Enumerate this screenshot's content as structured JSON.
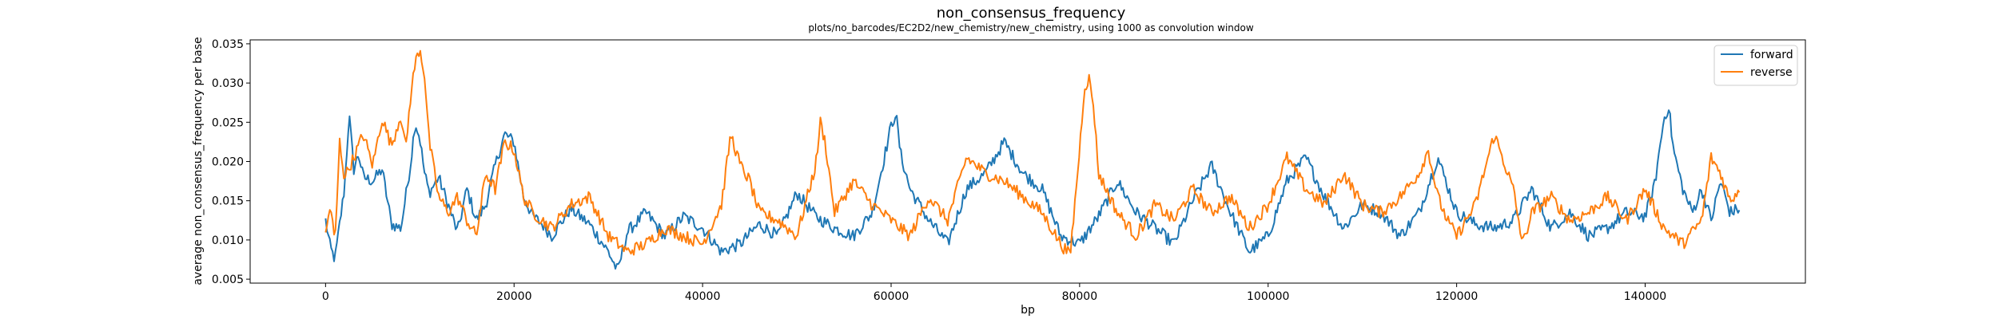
{
  "chart_data": {
    "type": "line",
    "title": "non_consensus_frequency",
    "subtitle": "plots/no_barcodes/EC2D2/new_chemistry/new_chemistry, using 1000 as convolution window",
    "xlabel": "bp",
    "ylabel": "average non_consensus_frequency per base",
    "xlim": [
      -8000,
      157000
    ],
    "ylim": [
      0.0045,
      0.0355
    ],
    "xticks": [
      0,
      20000,
      40000,
      60000,
      80000,
      100000,
      120000,
      140000
    ],
    "xtick_labels": [
      "0",
      "20000",
      "40000",
      "60000",
      "80000",
      "100000",
      "120000",
      "140000"
    ],
    "yticks": [
      0.005,
      0.01,
      0.015,
      0.02,
      0.025,
      0.03,
      0.035
    ],
    "ytick_labels": [
      "0.005",
      "0.010",
      "0.015",
      "0.020",
      "0.025",
      "0.030",
      "0.035"
    ],
    "legend_position": "top-right",
    "grid": false,
    "series": [
      {
        "name": "forward",
        "color": "#1f77b4",
        "x": [
          0,
          500,
          1000,
          1500,
          2000,
          2500,
          3000,
          3500,
          4000,
          5000,
          6000,
          7000,
          8000,
          9000,
          9500,
          10000,
          10500,
          11000,
          12000,
          13000,
          14000,
          15000,
          16000,
          17000,
          18000,
          19000,
          20000,
          21000,
          22000,
          23000,
          24000,
          26000,
          28000,
          30000,
          31000,
          32000,
          34000,
          36000,
          38000,
          40000,
          42000,
          44000,
          46000,
          48000,
          50000,
          52000,
          54000,
          56000,
          58000,
          60000,
          60500,
          61000,
          62000,
          64000,
          66000,
          68000,
          70000,
          72000,
          74000,
          76000,
          78000,
          80000,
          82000,
          84000,
          86000,
          88000,
          90000,
          92000,
          94000,
          96000,
          98000,
          100000,
          102000,
          104000,
          106000,
          108000,
          110000,
          112000,
          114000,
          116000,
          118000,
          120000,
          122000,
          124000,
          126000,
          128000,
          130000,
          132000,
          134000,
          136000,
          138000,
          140000,
          141000,
          142000,
          142500,
          143000,
          144000,
          145000,
          146000,
          147000,
          148000,
          149000,
          150000
        ],
        "y": [
          0.0125,
          0.009,
          0.0075,
          0.012,
          0.0165,
          0.026,
          0.019,
          0.021,
          0.018,
          0.0175,
          0.019,
          0.012,
          0.0115,
          0.0195,
          0.025,
          0.023,
          0.0185,
          0.016,
          0.018,
          0.0145,
          0.011,
          0.0165,
          0.0125,
          0.0145,
          0.0195,
          0.0235,
          0.0225,
          0.0155,
          0.013,
          0.012,
          0.0105,
          0.014,
          0.012,
          0.0085,
          0.006,
          0.011,
          0.0135,
          0.0105,
          0.013,
          0.0115,
          0.0085,
          0.0095,
          0.012,
          0.0105,
          0.016,
          0.013,
          0.0115,
          0.0105,
          0.0135,
          0.0245,
          0.0262,
          0.021,
          0.0165,
          0.0125,
          0.0095,
          0.0165,
          0.0185,
          0.0225,
          0.0185,
          0.0165,
          0.0105,
          0.0095,
          0.013,
          0.0175,
          0.0135,
          0.0115,
          0.0095,
          0.015,
          0.0195,
          0.0135,
          0.0085,
          0.0105,
          0.0175,
          0.0205,
          0.0155,
          0.0115,
          0.0145,
          0.0135,
          0.0105,
          0.0135,
          0.0205,
          0.0135,
          0.012,
          0.0115,
          0.0125,
          0.0165,
          0.0115,
          0.0135,
          0.0105,
          0.0115,
          0.0135,
          0.013,
          0.017,
          0.0255,
          0.027,
          0.0215,
          0.0165,
          0.0135,
          0.0165,
          0.0125,
          0.0175,
          0.0135,
          0.014
        ]
      },
      {
        "name": "reverse",
        "color": "#ff7f0e",
        "x": [
          0,
          500,
          1000,
          1500,
          2000,
          3000,
          4000,
          5000,
          6000,
          7000,
          8000,
          8500,
          9000,
          9500,
          10000,
          10500,
          11000,
          12000,
          13000,
          14000,
          15000,
          16000,
          17000,
          18000,
          19000,
          20000,
          21000,
          22000,
          24000,
          26000,
          28000,
          30000,
          32000,
          34000,
          36000,
          38000,
          40000,
          42000,
          43000,
          44000,
          45000,
          46000,
          48000,
          50000,
          52000,
          52500,
          53000,
          54000,
          56000,
          58000,
          60000,
          62000,
          64000,
          66000,
          68000,
          70000,
          72000,
          74000,
          76000,
          78000,
          79000,
          80000,
          80500,
          81000,
          81500,
          82000,
          84000,
          86000,
          88000,
          90000,
          92000,
          94000,
          96000,
          98000,
          100000,
          102000,
          104000,
          106000,
          108000,
          110000,
          112000,
          114000,
          116000,
          117000,
          118000,
          119000,
          120000,
          122000,
          124000,
          126000,
          127000,
          128000,
          130000,
          132000,
          134000,
          136000,
          138000,
          140000,
          142000,
          144000,
          146000,
          147000,
          148000,
          149000,
          150000
        ],
        "y": [
          0.0105,
          0.0145,
          0.0095,
          0.0225,
          0.018,
          0.0205,
          0.0235,
          0.0195,
          0.0255,
          0.022,
          0.026,
          0.0215,
          0.028,
          0.0325,
          0.0345,
          0.031,
          0.0225,
          0.0155,
          0.0135,
          0.0155,
          0.0125,
          0.0105,
          0.0185,
          0.0165,
          0.0225,
          0.0215,
          0.0155,
          0.0135,
          0.0115,
          0.0145,
          0.0155,
          0.0105,
          0.0085,
          0.0095,
          0.0115,
          0.0105,
          0.0095,
          0.0145,
          0.0235,
          0.0195,
          0.0175,
          0.0135,
          0.0125,
          0.0105,
          0.0195,
          0.025,
          0.0225,
          0.0135,
          0.0175,
          0.0145,
          0.0125,
          0.0105,
          0.0155,
          0.0125,
          0.0205,
          0.0185,
          0.0175,
          0.0155,
          0.0135,
          0.0095,
          0.008,
          0.0215,
          0.0295,
          0.0305,
          0.027,
          0.0185,
          0.0135,
          0.0105,
          0.0145,
          0.0125,
          0.0165,
          0.0135,
          0.0155,
          0.0115,
          0.0145,
          0.0205,
          0.0165,
          0.0145,
          0.0185,
          0.0145,
          0.0135,
          0.0155,
          0.0185,
          0.0215,
          0.0155,
          0.0125,
          0.0105,
          0.0145,
          0.0235,
          0.0165,
          0.0095,
          0.0135,
          0.0155,
          0.0125,
          0.0135,
          0.0155,
          0.0125,
          0.0165,
          0.0115,
          0.0095,
          0.0125,
          0.0205,
          0.0185,
          0.015,
          0.0165
        ]
      }
    ]
  }
}
